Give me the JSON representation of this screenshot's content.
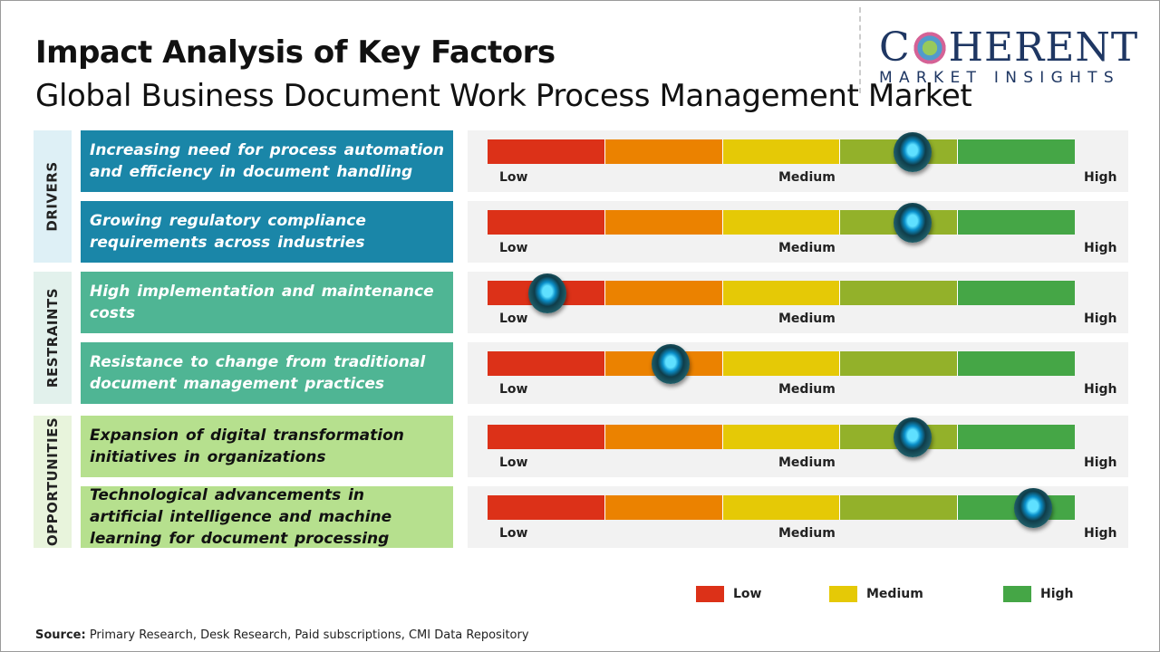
{
  "title": "Impact Analysis of Key Factors",
  "subtitle": "Global Business Document Work Process Management Market",
  "logo": {
    "main_left": "C",
    "main_right": "HERENT",
    "sub": "MARKET INSIGHTS"
  },
  "scale_labels": {
    "low": "Low",
    "medium": "Medium",
    "high": "High"
  },
  "scale_colors": [
    "#dc3118",
    "#eb8200",
    "#e5c906",
    "#93b12a",
    "#45a646"
  ],
  "categories": [
    {
      "label": "DRIVERS",
      "bg": "#def0f6",
      "box": "#1a86a8",
      "text": "#ffffff",
      "factors": [
        {
          "text": "Increasing need for process automation and efficiency in document handling",
          "impact": 0.724
        },
        {
          "text": "Growing regulatory compliance requirements across industries",
          "impact": 0.724
        }
      ]
    },
    {
      "label": "RESTRAINTS",
      "bg": "#e2f1ec",
      "box": "#4fb594",
      "text": "#ffffff",
      "factors": [
        {
          "text": "High implementation and maintenance costs",
          "impact": 0.102
        },
        {
          "text": "Resistance to change from traditional document management practices",
          "impact": 0.312
        }
      ]
    },
    {
      "label": "OPPORTUNITIES",
      "bg": "#e8f4dc",
      "box": "#b6e08e",
      "text": "#111111",
      "factors": [
        {
          "text": "Expansion of digital transformation initiatives in organizations",
          "impact": 0.724
        },
        {
          "text": "Technological advancements in artificial intelligence and machine learning for document processing",
          "impact": 0.929
        }
      ]
    }
  ],
  "legend": [
    {
      "label": "Low",
      "color": "#dc3118"
    },
    {
      "label": "Medium",
      "color": "#e5c906"
    },
    {
      "label": "High",
      "color": "#45a646"
    }
  ],
  "source": {
    "label": "Source:",
    "text": " Primary Research, Desk Research, Paid subscriptions, CMI Data Repository"
  }
}
